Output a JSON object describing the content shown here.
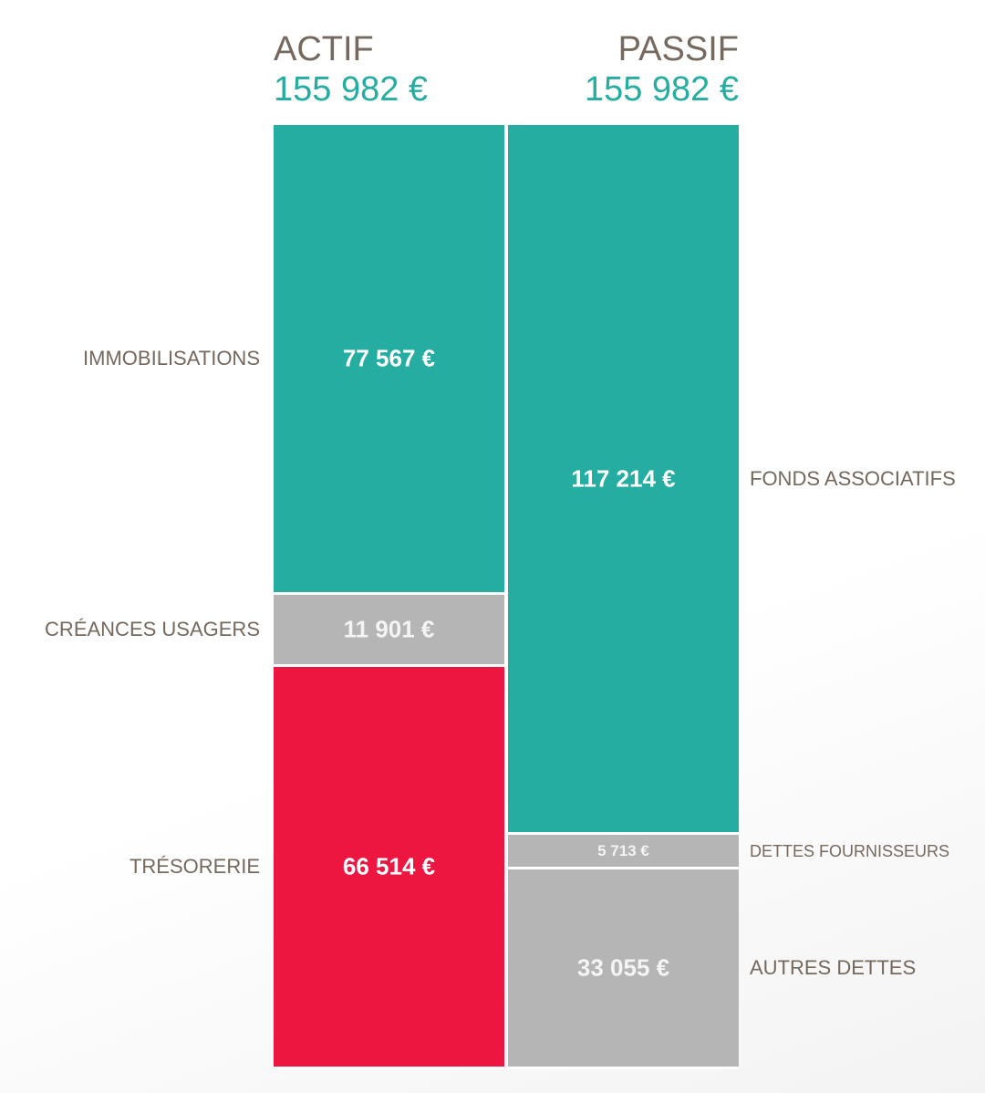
{
  "chart_data": {
    "type": "stacked_column",
    "columns": [
      {
        "name": "ACTIF",
        "total": 155982,
        "total_label": "155 982 €",
        "label_side": "left",
        "segments": [
          {
            "name": "IMMOBILISATIONS",
            "value": 77567,
            "value_label": "77 567 €",
            "color": "#26ada1"
          },
          {
            "name": "CRÉANCES USAGERS",
            "value": 11901,
            "value_label": "11 901 €",
            "color": "#b5b5b5"
          },
          {
            "name": "TRÉSORERIE",
            "value": 66514,
            "value_label": "66 514 €",
            "color": "#ec1641"
          }
        ]
      },
      {
        "name": "PASSIF",
        "total": 155982,
        "total_label": "155 982 €",
        "label_side": "right",
        "segments": [
          {
            "name": "FONDS ASSOCIATIFS",
            "value": 117214,
            "value_label": "117 214 €",
            "color": "#26ada1"
          },
          {
            "name": "DETTES FOURNISSEURS",
            "value": 5713,
            "value_label": "5 713 €",
            "color": "#b5b5b5"
          },
          {
            "name": "AUTRES DETTES",
            "value": 33055,
            "value_label": "33 055 €",
            "color": "#b5b5b5"
          }
        ]
      }
    ]
  }
}
